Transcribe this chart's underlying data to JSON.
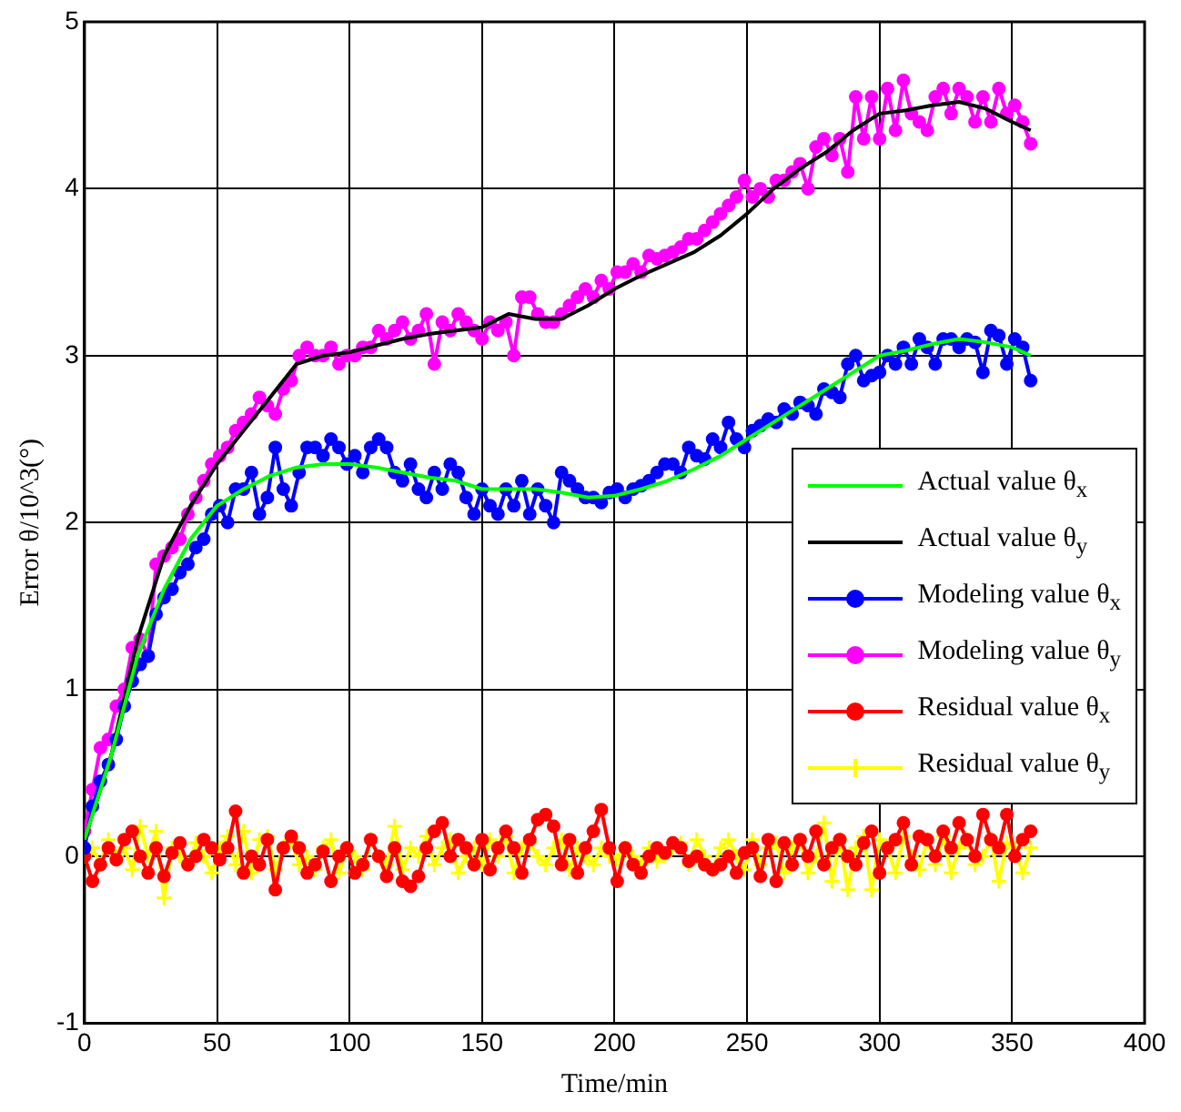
{
  "chart_data": {
    "type": "line",
    "xlabel": "Time/min",
    "ylabel": "Error θ/10^3(°)",
    "xlim": [
      0,
      400
    ],
    "xticks": [
      0,
      50,
      100,
      150,
      200,
      250,
      300,
      350,
      400
    ],
    "ylim": [
      -1,
      5
    ],
    "yticks": [
      -1,
      0,
      1,
      2,
      3,
      4,
      5
    ],
    "grid": true,
    "legend": "right",
    "x": [
      0,
      3,
      6,
      9,
      12,
      15,
      18,
      21,
      24,
      27,
      30,
      33,
      36,
      39,
      42,
      45,
      48,
      51,
      54,
      57,
      60,
      63,
      66,
      69,
      72,
      75,
      78,
      81,
      84,
      87,
      90,
      93,
      96,
      99,
      102,
      105,
      108,
      111,
      114,
      117,
      120,
      123,
      126,
      129,
      132,
      135,
      138,
      141,
      144,
      147,
      150,
      153,
      156,
      159,
      162,
      165,
      168,
      171,
      174,
      177,
      180,
      183,
      186,
      189,
      192,
      195,
      198,
      201,
      204,
      207,
      210,
      213,
      216,
      219,
      222,
      225,
      228,
      231,
      234,
      237,
      240,
      243,
      246,
      249,
      252,
      255,
      258,
      261,
      264,
      267,
      270,
      273,
      276,
      279,
      282,
      285,
      288,
      291,
      294,
      297,
      300,
      303,
      306,
      309,
      312,
      315,
      318,
      321,
      324,
      327,
      330,
      333,
      336,
      339,
      342,
      345,
      348,
      351,
      354,
      357
    ],
    "series": [
      {
        "name": "Actual value θ$_{x}$",
        "color": "#00ff00",
        "marker": "none",
        "x": [
          0,
          10,
          20,
          30,
          40,
          50,
          60,
          70,
          80,
          90,
          100,
          110,
          120,
          130,
          140,
          150,
          160,
          170,
          180,
          190,
          200,
          210,
          220,
          230,
          240,
          250,
          260,
          270,
          280,
          290,
          300,
          310,
          320,
          330,
          340,
          350,
          357
        ],
        "values": [
          0.1,
          0.6,
          1.2,
          1.6,
          1.9,
          2.1,
          2.2,
          2.28,
          2.33,
          2.35,
          2.35,
          2.33,
          2.3,
          2.27,
          2.25,
          2.2,
          2.2,
          2.2,
          2.18,
          2.15,
          2.16,
          2.2,
          2.25,
          2.32,
          2.4,
          2.5,
          2.6,
          2.7,
          2.8,
          2.9,
          3.0,
          3.03,
          3.07,
          3.1,
          3.08,
          3.05,
          3.0
        ]
      },
      {
        "name": "Actual value θ$_{y}$",
        "color": "#000000",
        "marker": "none",
        "x": [
          0,
          10,
          20,
          30,
          40,
          50,
          60,
          70,
          80,
          90,
          100,
          110,
          120,
          130,
          140,
          150,
          160,
          170,
          180,
          190,
          200,
          210,
          220,
          230,
          240,
          250,
          260,
          270,
          280,
          290,
          300,
          310,
          320,
          330,
          340,
          350,
          357
        ],
        "values": [
          0.1,
          0.6,
          1.3,
          1.8,
          2.1,
          2.35,
          2.55,
          2.75,
          2.95,
          3.0,
          3.02,
          3.06,
          3.1,
          3.13,
          3.15,
          3.17,
          3.25,
          3.22,
          3.22,
          3.3,
          3.4,
          3.48,
          3.55,
          3.62,
          3.72,
          3.85,
          4.0,
          4.12,
          4.22,
          4.35,
          4.45,
          4.47,
          4.5,
          4.52,
          4.48,
          4.4,
          4.35
        ]
      },
      {
        "name": "Modeling value θ$_{x}$",
        "color": "#0000ff",
        "marker": "circle",
        "values": [
          0.05,
          0.3,
          0.45,
          0.55,
          0.7,
          0.9,
          1.05,
          1.15,
          1.2,
          1.45,
          1.55,
          1.6,
          1.7,
          1.75,
          1.85,
          1.9,
          2.05,
          2.1,
          2.0,
          2.2,
          2.2,
          2.3,
          2.05,
          2.15,
          2.45,
          2.2,
          2.1,
          2.3,
          2.45,
          2.45,
          2.4,
          2.5,
          2.45,
          2.35,
          2.4,
          2.3,
          2.45,
          2.5,
          2.45,
          2.3,
          2.25,
          2.35,
          2.2,
          2.15,
          2.3,
          2.2,
          2.35,
          2.3,
          2.15,
          2.05,
          2.2,
          2.1,
          2.05,
          2.2,
          2.1,
          2.25,
          2.05,
          2.2,
          2.1,
          2.0,
          2.3,
          2.25,
          2.2,
          2.15,
          2.15,
          2.12,
          2.18,
          2.2,
          2.15,
          2.2,
          2.22,
          2.25,
          2.3,
          2.35,
          2.35,
          2.3,
          2.45,
          2.4,
          2.38,
          2.5,
          2.45,
          2.6,
          2.5,
          2.45,
          2.55,
          2.58,
          2.62,
          2.6,
          2.68,
          2.65,
          2.72,
          2.7,
          2.65,
          2.8,
          2.78,
          2.75,
          2.95,
          3.0,
          2.85,
          2.88,
          2.9,
          3.0,
          2.95,
          3.05,
          2.95,
          3.1,
          3.05,
          2.95,
          3.1,
          3.1,
          3.05,
          3.1,
          3.08,
          2.9,
          3.15,
          3.12,
          2.95,
          3.1,
          3.05,
          2.85
        ]
      },
      {
        "name": "Modeling value θ$_{y}$",
        "color": "#ff00ff",
        "marker": "circle",
        "values": [
          0.15,
          0.4,
          0.65,
          0.7,
          0.9,
          1.0,
          1.25,
          1.3,
          1.2,
          1.75,
          1.8,
          1.85,
          1.9,
          2.05,
          2.15,
          2.25,
          2.35,
          2.4,
          2.45,
          2.55,
          2.6,
          2.65,
          2.75,
          2.7,
          2.65,
          2.8,
          2.85,
          3.0,
          3.05,
          3.0,
          3.0,
          3.05,
          2.95,
          3.0,
          3.0,
          3.05,
          3.05,
          3.15,
          3.1,
          3.15,
          3.2,
          3.1,
          3.15,
          3.25,
          2.95,
          3.2,
          3.15,
          3.25,
          3.2,
          3.15,
          3.1,
          3.2,
          3.15,
          3.2,
          3.0,
          3.35,
          3.35,
          3.25,
          3.2,
          3.2,
          3.25,
          3.3,
          3.35,
          3.4,
          3.35,
          3.45,
          3.4,
          3.5,
          3.5,
          3.55,
          3.5,
          3.6,
          3.58,
          3.6,
          3.62,
          3.65,
          3.7,
          3.7,
          3.75,
          3.8,
          3.85,
          3.9,
          3.95,
          4.05,
          3.95,
          4.0,
          3.95,
          4.05,
          4.05,
          4.1,
          4.15,
          4.0,
          4.25,
          4.3,
          4.2,
          4.3,
          4.1,
          4.55,
          4.3,
          4.55,
          4.3,
          4.6,
          4.35,
          4.65,
          4.45,
          4.4,
          4.35,
          4.55,
          4.6,
          4.45,
          4.6,
          4.55,
          4.4,
          4.55,
          4.4,
          4.6,
          4.45,
          4.5,
          4.4,
          4.27
        ]
      },
      {
        "name": "Residual value θ$_{x}$",
        "color": "#ff0000",
        "marker": "circle",
        "values": [
          0.0,
          -0.15,
          -0.05,
          0.05,
          -0.02,
          0.1,
          0.15,
          0.0,
          -0.1,
          0.05,
          -0.12,
          0.02,
          0.08,
          -0.05,
          0.0,
          0.1,
          0.05,
          -0.02,
          0.05,
          0.27,
          -0.1,
          0.0,
          -0.05,
          0.1,
          -0.2,
          0.05,
          0.12,
          0.05,
          -0.1,
          -0.05,
          0.03,
          -0.15,
          0.0,
          0.05,
          -0.1,
          -0.05,
          0.1,
          0.0,
          -0.12,
          0.05,
          -0.15,
          -0.18,
          -0.12,
          0.05,
          0.15,
          0.2,
          0.0,
          0.1,
          0.05,
          -0.05,
          0.1,
          -0.08,
          0.05,
          0.15,
          0.05,
          -0.1,
          0.1,
          0.22,
          0.25,
          0.18,
          -0.05,
          0.1,
          -0.1,
          0.05,
          0.15,
          0.28,
          0.05,
          -0.15,
          0.05,
          -0.05,
          -0.1,
          0.0,
          0.05,
          0.02,
          0.08,
          0.05,
          -0.03,
          0.0,
          -0.05,
          -0.08,
          -0.05,
          0.0,
          -0.1,
          0.02,
          0.05,
          -0.12,
          0.1,
          -0.15,
          0.08,
          -0.05,
          0.1,
          0.0,
          0.15,
          -0.05,
          0.05,
          0.1,
          0.0,
          -0.05,
          0.08,
          0.15,
          -0.1,
          0.05,
          0.1,
          0.2,
          -0.05,
          0.12,
          0.1,
          0.0,
          0.15,
          0.05,
          0.2,
          0.1,
          0.0,
          0.25,
          0.1,
          0.05,
          0.25,
          0.0,
          0.1,
          0.15
        ]
      },
      {
        "name": "Residual value θ$_{y}$",
        "color": "#ffff00",
        "marker": "cross",
        "values": [
          0.0,
          0.05,
          -0.05,
          0.1,
          0.0,
          0.05,
          -0.08,
          0.18,
          0.0,
          0.15,
          -0.25,
          0.05,
          0.0,
          -0.05,
          0.08,
          0.0,
          -0.1,
          0.05,
          0.12,
          -0.05,
          0.15,
          -0.1,
          0.1,
          0.12,
          -0.08,
          0.05,
          0.1,
          -0.05,
          0.0,
          -0.08,
          0.05,
          0.1,
          -0.1,
          0.05,
          0.0,
          -0.08,
          0.1,
          0.0,
          -0.05,
          0.18,
          -0.08,
          0.05,
          0.0,
          0.12,
          -0.05,
          0.05,
          0.1,
          -0.1,
          0.0,
          0.05,
          -0.05,
          0.1,
          0.0,
          0.12,
          -0.1,
          0.05,
          0.08,
          0.0,
          -0.05,
          0.05,
          0.1,
          -0.08,
          0.05,
          0.0,
          -0.05,
          0.05,
          0.0,
          -0.02,
          0.05,
          0.0,
          -0.05,
          0.05,
          -0.03,
          0.0,
          0.05,
          0.08,
          -0.05,
          0.1,
          0.0,
          -0.08,
          0.05,
          0.1,
          0.0,
          -0.08,
          0.1,
          -0.05,
          0.05,
          0.08,
          -0.1,
          0.05,
          0.1,
          -0.1,
          0.0,
          0.2,
          -0.15,
          0.1,
          -0.2,
          0.05,
          0.12,
          -0.2,
          0.1,
          0.05,
          -0.1,
          0.12,
          0.0,
          -0.08,
          0.1,
          -0.05,
          0.12,
          -0.1,
          0.05,
          0.1,
          -0.05,
          0.0,
          0.1,
          -0.15,
          0.08,
          0.05,
          -0.1,
          0.05
        ]
      }
    ]
  }
}
